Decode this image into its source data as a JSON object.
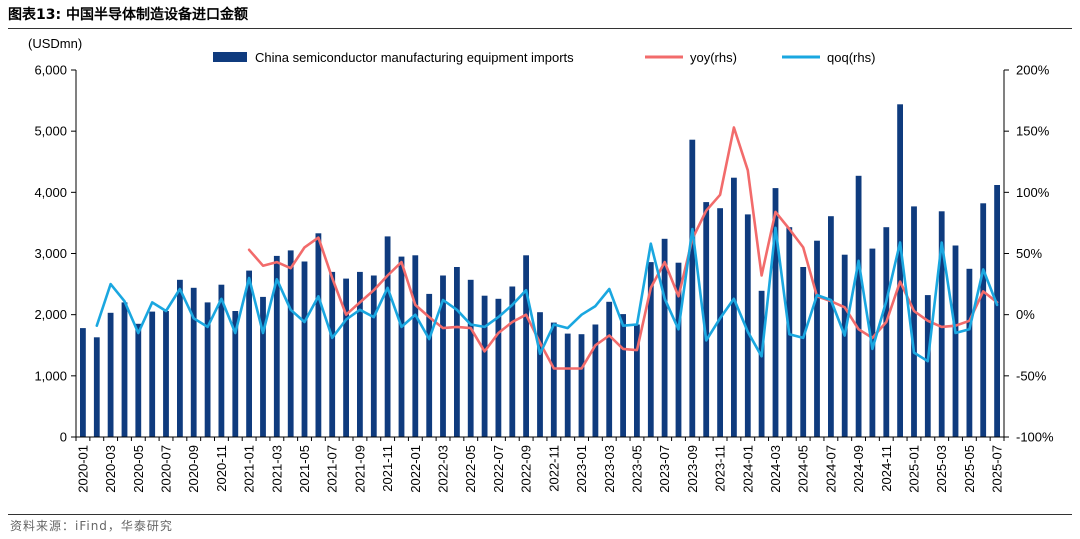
{
  "figure": {
    "title": "图表13:  中国半导体制造设备进口金额",
    "source": "资料来源：iFind，华泰研究"
  },
  "colors": {
    "bar": "#0f3b7e",
    "yoy": "#f26b6b",
    "qoq": "#1aa7e0",
    "axis": "#000000",
    "rule": "#333333"
  },
  "chart_data": {
    "type": "bar",
    "y_unit_label": "(USDmn)",
    "ylim": [
      0,
      6000
    ],
    "yticks": [
      "0",
      "1,000",
      "2,000",
      "3,000",
      "4,000",
      "5,000",
      "6,000"
    ],
    "y2lim": [
      -100,
      200
    ],
    "y2ticks": [
      "-100%",
      "-50%",
      "0%",
      "50%",
      "100%",
      "150%",
      "200%"
    ],
    "legend_position": "top",
    "grid": false,
    "categories": [
      "2020-01",
      "2020-02",
      "2020-03",
      "2020-04",
      "2020-05",
      "2020-06",
      "2020-07",
      "2020-08",
      "2020-09",
      "2020-10",
      "2020-11",
      "2020-12",
      "2021-01",
      "2021-02",
      "2021-03",
      "2021-04",
      "2021-05",
      "2021-06",
      "2021-07",
      "2021-08",
      "2021-09",
      "2021-10",
      "2021-11",
      "2021-12",
      "2022-01",
      "2022-02",
      "2022-03",
      "2022-04",
      "2022-05",
      "2022-06",
      "2022-07",
      "2022-08",
      "2022-09",
      "2022-10",
      "2022-11",
      "2022-12",
      "2023-01",
      "2023-02",
      "2023-03",
      "2023-04",
      "2023-05",
      "2023-06",
      "2023-07",
      "2023-08",
      "2023-09",
      "2023-10",
      "2023-11",
      "2023-12",
      "2024-01",
      "2024-02",
      "2024-03",
      "2024-04",
      "2024-05",
      "2024-06",
      "2024-07",
      "2024-08",
      "2024-09",
      "2024-10",
      "2024-11",
      "2024-12",
      "2025-01",
      "2025-02",
      "2025-03",
      "2025-04",
      "2025-05",
      "2025-06",
      "2025-07"
    ],
    "x_tick_labels": [
      "2020-01",
      "2020-03",
      "2020-05",
      "2020-07",
      "2020-09",
      "2020-11",
      "2021-01",
      "2021-03",
      "2021-05",
      "2021-07",
      "2021-09",
      "2021-11",
      "2022-01",
      "2022-03",
      "2022-05",
      "2022-07",
      "2022-09",
      "2022-11",
      "2023-01",
      "2023-03",
      "2023-05",
      "2023-07",
      "2023-09",
      "2023-11",
      "2024-01",
      "2024-03",
      "2024-05",
      "2024-07",
      "2024-09",
      "2024-11",
      "2025-01",
      "2025-03",
      "2025-05",
      "2025-07"
    ],
    "series": [
      {
        "name": "China semiconductor manufacturing equipment imports",
        "kind": "bar",
        "axis": "left",
        "values": [
          1780,
          1630,
          2030,
          2200,
          1850,
          2050,
          2060,
          2570,
          2440,
          2200,
          2490,
          2060,
          2720,
          2290,
          2960,
          3050,
          2870,
          3330,
          2700,
          2590,
          2700,
          2640,
          3280,
          2950,
          2970,
          2340,
          2640,
          2780,
          2570,
          2310,
          2260,
          2460,
          2970,
          2040,
          1870,
          1690,
          1680,
          1840,
          2210,
          2010,
          1840,
          2860,
          3240,
          2850,
          4860,
          3840,
          3740,
          4240,
          3640,
          2390,
          4070,
          3430,
          2780,
          3210,
          3610,
          2980,
          4270,
          3080,
          3430,
          5440,
          3770,
          2320,
          3690,
          3130,
          2750,
          3820,
          4120
        ]
      },
      {
        "name": "yoy(rhs)",
        "kind": "line",
        "axis": "right",
        "values": [
          null,
          null,
          null,
          null,
          null,
          null,
          null,
          null,
          null,
          null,
          null,
          null,
          53,
          40,
          43,
          38,
          55,
          63,
          30,
          0,
          10,
          20,
          32,
          43,
          8,
          -2,
          -11,
          -10,
          -11,
          -30,
          -15,
          -6,
          0,
          -23,
          -44,
          -44,
          -44,
          -25,
          -17,
          -28,
          -29,
          22,
          43,
          15,
          62,
          85,
          98,
          153,
          118,
          32,
          84,
          70,
          55,
          15,
          11,
          6,
          -12,
          -19,
          -6,
          27,
          3,
          -5,
          -10,
          -9,
          -5,
          19,
          10
        ]
      },
      {
        "name": "qoq(rhs)",
        "kind": "line",
        "axis": "right",
        "values": [
          null,
          -9,
          25,
          11,
          -15,
          10,
          3,
          21,
          -3,
          -10,
          13,
          -15,
          30,
          -15,
          29,
          4,
          -6,
          15,
          -19,
          -4,
          4,
          -2,
          22,
          -10,
          0,
          -20,
          12,
          4,
          -8,
          -10,
          -2,
          8,
          20,
          -32,
          -8,
          -11,
          0,
          7,
          21,
          -9,
          -8,
          58,
          13,
          -12,
          70,
          -21,
          -3,
          13,
          -14,
          -34,
          71,
          -16,
          -19,
          16,
          12,
          -17,
          44,
          -28,
          11,
          59,
          -31,
          -38,
          59,
          -15,
          -12,
          37,
          8
        ]
      }
    ]
  }
}
